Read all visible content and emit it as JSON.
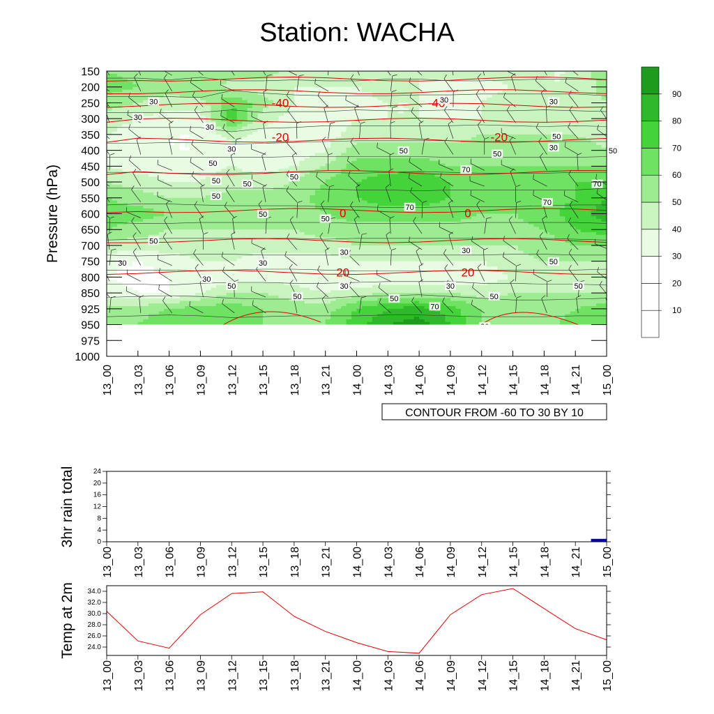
{
  "title": "Station: WACHA",
  "chart_data": [
    {
      "type": "heatmap",
      "name": "rh-cross-section",
      "ylabel": "Pressure (hPa)",
      "y_ticks": [
        150,
        200,
        250,
        300,
        350,
        400,
        450,
        500,
        550,
        600,
        650,
        700,
        750,
        800,
        850,
        925,
        950,
        975,
        1000
      ],
      "x_ticks": [
        "13_00",
        "13_03",
        "13_06",
        "13_09",
        "13_12",
        "13_15",
        "13_18",
        "13_21",
        "14_00",
        "14_03",
        "14_06",
        "14_09",
        "14_12",
        "14_15",
        "14_18",
        "14_21",
        "15_00"
      ],
      "colorbar": {
        "levels": [
          10,
          20,
          30,
          40,
          50,
          60,
          70,
          80,
          90
        ],
        "colors": [
          "#ffffff",
          "#ffffff",
          "#ffffff",
          "#e8fbe3",
          "#c9f4bf",
          "#9dec91",
          "#6fe263",
          "#45d33a",
          "#2fb82a",
          "#1e9a1c"
        ]
      },
      "humidity_grid": [
        [
          60,
          55,
          60,
          50,
          55,
          55,
          45,
          50,
          50,
          45,
          40,
          45,
          45,
          45,
          40,
          40,
          60
        ],
        [
          65,
          60,
          55,
          60,
          45,
          45,
          40,
          40,
          40,
          45,
          40,
          35,
          35,
          40,
          40,
          40,
          55
        ],
        [
          55,
          50,
          45,
          45,
          70,
          55,
          40,
          35,
          35,
          40,
          40,
          35,
          40,
          45,
          45,
          45,
          50
        ],
        [
          45,
          40,
          35,
          35,
          75,
          45,
          35,
          30,
          40,
          40,
          40,
          40,
          40,
          45,
          50,
          45,
          45
        ],
        [
          40,
          35,
          30,
          30,
          45,
          35,
          30,
          35,
          45,
          45,
          45,
          45,
          50,
          50,
          50,
          50,
          45
        ],
        [
          35,
          30,
          30,
          30,
          35,
          30,
          30,
          40,
          55,
          55,
          55,
          55,
          55,
          55,
          55,
          55,
          50
        ],
        [
          40,
          35,
          35,
          35,
          40,
          35,
          40,
          50,
          65,
          65,
          65,
          60,
          60,
          60,
          60,
          60,
          60
        ],
        [
          50,
          45,
          40,
          40,
          45,
          45,
          50,
          60,
          70,
          75,
          80,
          70,
          65,
          65,
          65,
          70,
          70
        ],
        [
          60,
          55,
          50,
          50,
          55,
          55,
          55,
          65,
          70,
          75,
          75,
          70,
          65,
          65,
          65,
          70,
          80
        ],
        [
          65,
          65,
          60,
          55,
          55,
          55,
          55,
          60,
          65,
          65,
          65,
          65,
          60,
          60,
          65,
          75,
          85
        ],
        [
          60,
          55,
          50,
          50,
          50,
          50,
          50,
          55,
          55,
          55,
          55,
          55,
          55,
          55,
          60,
          70,
          75
        ],
        [
          45,
          45,
          45,
          45,
          45,
          45,
          45,
          45,
          50,
          50,
          50,
          50,
          50,
          50,
          55,
          60,
          60
        ],
        [
          35,
          30,
          35,
          40,
          40,
          35,
          35,
          35,
          40,
          40,
          40,
          40,
          40,
          45,
          50,
          50,
          50
        ],
        [
          30,
          25,
          30,
          30,
          35,
          35,
          35,
          30,
          30,
          30,
          30,
          30,
          35,
          40,
          45,
          45,
          50
        ],
        [
          35,
          30,
          30,
          40,
          50,
          50,
          45,
          40,
          45,
          50,
          50,
          50,
          45,
          50,
          50,
          50,
          50
        ],
        [
          55,
          55,
          60,
          65,
          65,
          60,
          55,
          55,
          70,
          80,
          85,
          75,
          60,
          55,
          55,
          60,
          65
        ],
        [
          55,
          60,
          70,
          70,
          60,
          60,
          60,
          60,
          75,
          90,
          95,
          80,
          60,
          55,
          55,
          65,
          70
        ]
      ],
      "grid_pressures": [
        150,
        200,
        250,
        300,
        350,
        400,
        450,
        500,
        550,
        600,
        650,
        700,
        750,
        800,
        850,
        925,
        950
      ],
      "temperature_contours": {
        "note": "CONTOUR FROM -60 TO 30 BY 10",
        "labeled": [
          {
            "value": -40,
            "at": [
              "13_15",
              "14_06"
            ]
          },
          {
            "value": -20,
            "at": [
              "13_15",
              "14_12"
            ]
          },
          {
            "value": 0,
            "at": [
              "13_21",
              "14_09"
            ]
          },
          {
            "value": 20,
            "at": [
              "13_21",
              "14_09"
            ]
          }
        ],
        "isotherm_pressures": [
          175,
          215,
          258,
          305,
          368,
          470,
          590,
          685,
          785
        ]
      },
      "rh_contour_labels": [
        "30",
        "50",
        "70"
      ]
    },
    {
      "type": "bar",
      "name": "rain",
      "ylabel": "3hr rain total",
      "ylim": [
        0,
        24
      ],
      "y_ticks": [
        0,
        4,
        8,
        12,
        16,
        20,
        24
      ],
      "categories": [
        "13_00",
        "13_03",
        "13_06",
        "13_09",
        "13_12",
        "13_15",
        "13_18",
        "13_21",
        "14_00",
        "14_03",
        "14_06",
        "14_09",
        "14_12",
        "14_15",
        "14_18",
        "14_21",
        "15_00"
      ],
      "values": [
        0,
        0,
        0,
        0,
        0,
        0,
        0,
        0,
        0,
        0,
        0,
        0,
        0,
        0,
        0,
        0,
        1
      ],
      "bar_color": "#0000cc"
    },
    {
      "type": "line",
      "name": "temp",
      "ylabel": "Temp at 2m",
      "ylim": [
        22.5,
        35.0
      ],
      "y_ticks": [
        "24.0",
        "26.0",
        "28.0",
        "30.0",
        "32.0",
        "34.0"
      ],
      "categories": [
        "13_00",
        "13_03",
        "13_06",
        "13_09",
        "13_12",
        "13_15",
        "13_18",
        "13_21",
        "14_00",
        "14_03",
        "14_06",
        "14_09",
        "14_12",
        "14_15",
        "14_18",
        "14_21",
        "15_00"
      ],
      "values": [
        30.4,
        25.1,
        23.8,
        29.8,
        33.6,
        33.9,
        29.5,
        26.8,
        24.8,
        23.2,
        22.9,
        29.8,
        33.4,
        34.5,
        30.9,
        27.3,
        25.3
      ],
      "line_color": "#e00000"
    }
  ]
}
